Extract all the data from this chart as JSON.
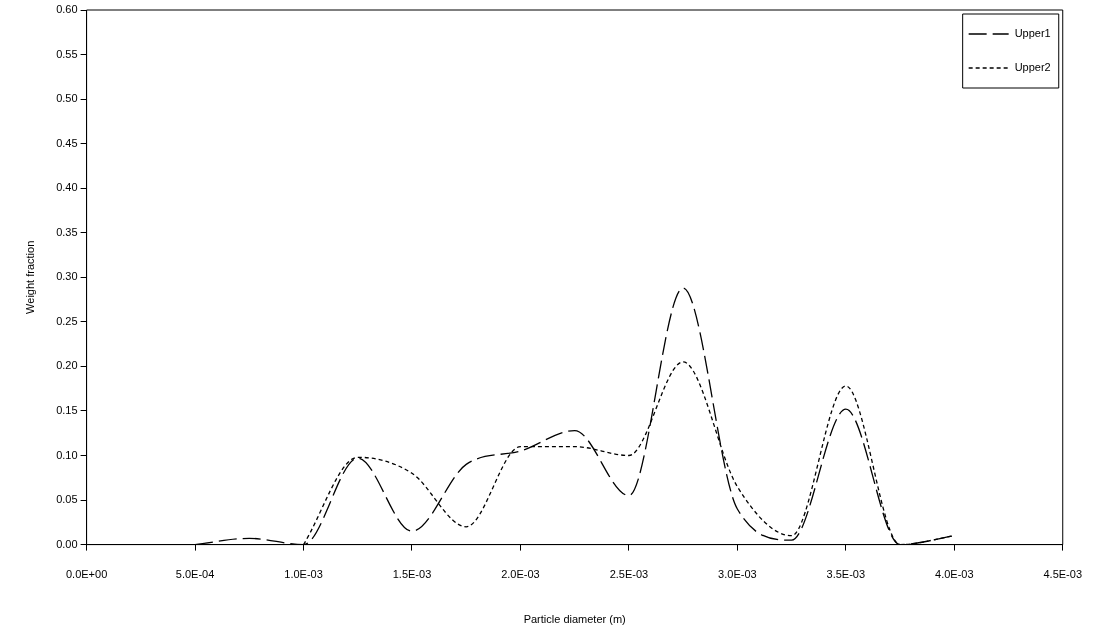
{
  "chart_data": {
    "type": "line",
    "xlabel": "Particle diameter (m)",
    "ylabel": "Weight fraction",
    "series": [
      {
        "name": "Upper1",
        "color": "#000000",
        "line_style": "dashed",
        "x": [
          0.0005,
          0.00075,
          0.001,
          0.00125,
          0.0015,
          0.00175,
          0.002,
          0.00225,
          0.0025,
          0.00275,
          0.003,
          0.00325,
          0.0035,
          0.00375,
          0.004
        ],
        "values": [
          0,
          0.007,
          0,
          0.097,
          0.015,
          0.09,
          0.105,
          0.128,
          0.055,
          0.288,
          0.04,
          0.005,
          0.152,
          0,
          0.01
        ]
      },
      {
        "name": "Upper2",
        "color": "#000000",
        "line_style": "dotted",
        "x": [
          0.001,
          0.00125,
          0.0015,
          0.00175,
          0.002,
          0.00225,
          0.0025,
          0.00275,
          0.003,
          0.00325,
          0.0035,
          0.00375,
          0.004
        ],
        "values": [
          0,
          0.098,
          0.08,
          0.02,
          0.11,
          0.11,
          0.1,
          0.205,
          0.065,
          0.01,
          0.178,
          0,
          0.01
        ]
      }
    ],
    "xlim": [
      0,
      0.0045
    ],
    "xticks": [
      {
        "value": 0,
        "label": "0.0E+00"
      },
      {
        "value": 0.0005,
        "label": "5.0E-04"
      },
      {
        "value": 0.001,
        "label": "1.0E-03"
      },
      {
        "value": 0.0015,
        "label": "1.5E-03"
      },
      {
        "value": 0.002,
        "label": "2.0E-03"
      },
      {
        "value": 0.0025,
        "label": "2.5E-03"
      },
      {
        "value": 0.003,
        "label": "3.0E-03"
      },
      {
        "value": 0.0035,
        "label": "3.5E-03"
      },
      {
        "value": 0.004,
        "label": "4.0E-03"
      },
      {
        "value": 0.0045,
        "label": "4.5E-03"
      }
    ],
    "ylim": [
      0,
      0.6
    ],
    "yticks": [
      {
        "value": 0,
        "label": "0.00"
      },
      {
        "value": 0.05,
        "label": "0.05"
      },
      {
        "value": 0.1,
        "label": "0.10"
      },
      {
        "value": 0.15,
        "label": "0.15"
      },
      {
        "value": 0.2,
        "label": "0.20"
      },
      {
        "value": 0.25,
        "label": "0.25"
      },
      {
        "value": 0.3,
        "label": "0.30"
      },
      {
        "value": 0.35,
        "label": "0.35"
      },
      {
        "value": 0.4,
        "label": "0.40"
      },
      {
        "value": 0.45,
        "label": "0.45"
      },
      {
        "value": 0.5,
        "label": "0.50"
      },
      {
        "value": 0.55,
        "label": "0.55"
      },
      {
        "value": 0.6,
        "label": "0.60"
      }
    ],
    "grid": false,
    "legend": "top right",
    "marker": "none"
  }
}
